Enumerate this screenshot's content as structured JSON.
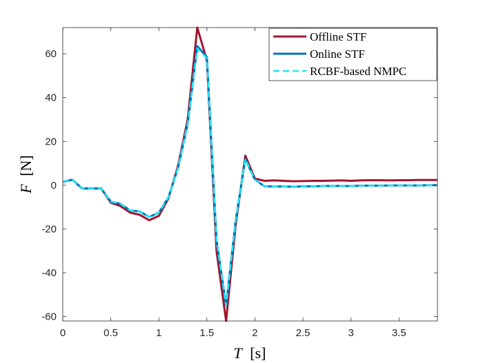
{
  "chart_data": {
    "type": "line",
    "title": "",
    "xlabel": {
      "var": "T",
      "unit": "[s]"
    },
    "ylabel": {
      "var": "F",
      "unit": "[N]"
    },
    "xlim": [
      0,
      3.9
    ],
    "ylim": [
      -62,
      72
    ],
    "x_ticks": [
      0,
      0.5,
      1,
      1.5,
      2,
      2.5,
      3,
      3.5
    ],
    "x_tick_labels": [
      "0",
      "0.5",
      "1",
      "1.5",
      "2",
      "2.5",
      "3",
      "3.5"
    ],
    "y_ticks": [
      -60,
      -40,
      -20,
      0,
      20,
      40,
      60
    ],
    "y_tick_labels": [
      "-60",
      "-40",
      "-20",
      "0",
      "20",
      "40",
      "60"
    ],
    "grid": false,
    "legend_position": "top-right",
    "series": [
      {
        "name": "Offline STF",
        "color": "#A2142F",
        "dash": "solid",
        "x": [
          0,
          0.1,
          0.2,
          0.3,
          0.4,
          0.5,
          0.6,
          0.7,
          0.8,
          0.9,
          1.0,
          1.1,
          1.2,
          1.3,
          1.4,
          1.5,
          1.6,
          1.7,
          1.8,
          1.9,
          2.0,
          2.1,
          2.2,
          2.3,
          2.4,
          2.5,
          2.6,
          2.7,
          2.8,
          2.9,
          3.0,
          3.1,
          3.2,
          3.3,
          3.4,
          3.5,
          3.6,
          3.7,
          3.8,
          3.9
        ],
        "y": [
          1.5,
          2.5,
          -1.5,
          -1.5,
          -1.5,
          -8,
          -9.5,
          -12.5,
          -13.5,
          -16,
          -14,
          -6,
          9,
          30,
          72,
          57,
          -30,
          -62,
          -18,
          13.5,
          3,
          2,
          2.2,
          2,
          1.8,
          1.9,
          2,
          2,
          2.1,
          2.2,
          2,
          2.2,
          2.3,
          2.3,
          2.2,
          2.3,
          2.3,
          2.4,
          2.4,
          2.4
        ]
      },
      {
        "name": "Online STF",
        "color": "#0072BD",
        "dash": "solid",
        "x": [
          0,
          0.1,
          0.2,
          0.3,
          0.4,
          0.5,
          0.6,
          0.7,
          0.8,
          0.9,
          1.0,
          1.1,
          1.2,
          1.3,
          1.4,
          1.5,
          1.6,
          1.7,
          1.8,
          1.9,
          2.0,
          2.1,
          2.2,
          2.3,
          2.4,
          2.5,
          2.6,
          2.7,
          2.8,
          2.9,
          3.0,
          3.1,
          3.2,
          3.3,
          3.4,
          3.5,
          3.6,
          3.7,
          3.8,
          3.9
        ],
        "y": [
          1.5,
          2.5,
          -1.5,
          -1.5,
          -1.5,
          -7.5,
          -8.5,
          -11.5,
          -12,
          -14.5,
          -12.5,
          -5.5,
          8,
          28,
          63.5,
          58.5,
          -25,
          -55,
          -16,
          12,
          2.5,
          -0.5,
          -0.6,
          -0.6,
          -0.7,
          -0.5,
          -0.5,
          -0.4,
          -0.3,
          -0.3,
          -0.4,
          -0.2,
          -0.2,
          -0.2,
          -0.1,
          -0.1,
          -0.1,
          -0.1,
          0,
          0
        ]
      },
      {
        "name": "RCBF-based NMPC",
        "color": "#22E6F0",
        "dash": "dashed",
        "x": [
          0,
          0.1,
          0.2,
          0.3,
          0.4,
          0.5,
          0.6,
          0.7,
          0.8,
          0.9,
          1.0,
          1.1,
          1.2,
          1.3,
          1.4,
          1.5,
          1.6,
          1.7,
          1.8,
          1.9,
          2.0,
          2.1,
          2.2,
          2.3,
          2.4,
          2.5,
          2.6,
          2.7,
          2.8,
          2.9,
          3.0,
          3.1,
          3.2,
          3.3,
          3.4,
          3.5,
          3.6,
          3.7,
          3.8,
          3.9
        ],
        "y": [
          1.5,
          2.5,
          -1.5,
          -1.5,
          -1.5,
          -7.5,
          -8.5,
          -11.5,
          -12,
          -14.5,
          -12.5,
          -5.5,
          8,
          28,
          62.5,
          58,
          -25,
          -55,
          -16,
          12,
          2.5,
          -0.5,
          -0.6,
          -0.6,
          -0.7,
          -0.5,
          -0.5,
          -0.4,
          -0.3,
          -0.3,
          -0.4,
          -0.2,
          -0.2,
          -0.2,
          -0.1,
          -0.1,
          -0.1,
          -0.1,
          0,
          0
        ]
      }
    ]
  }
}
